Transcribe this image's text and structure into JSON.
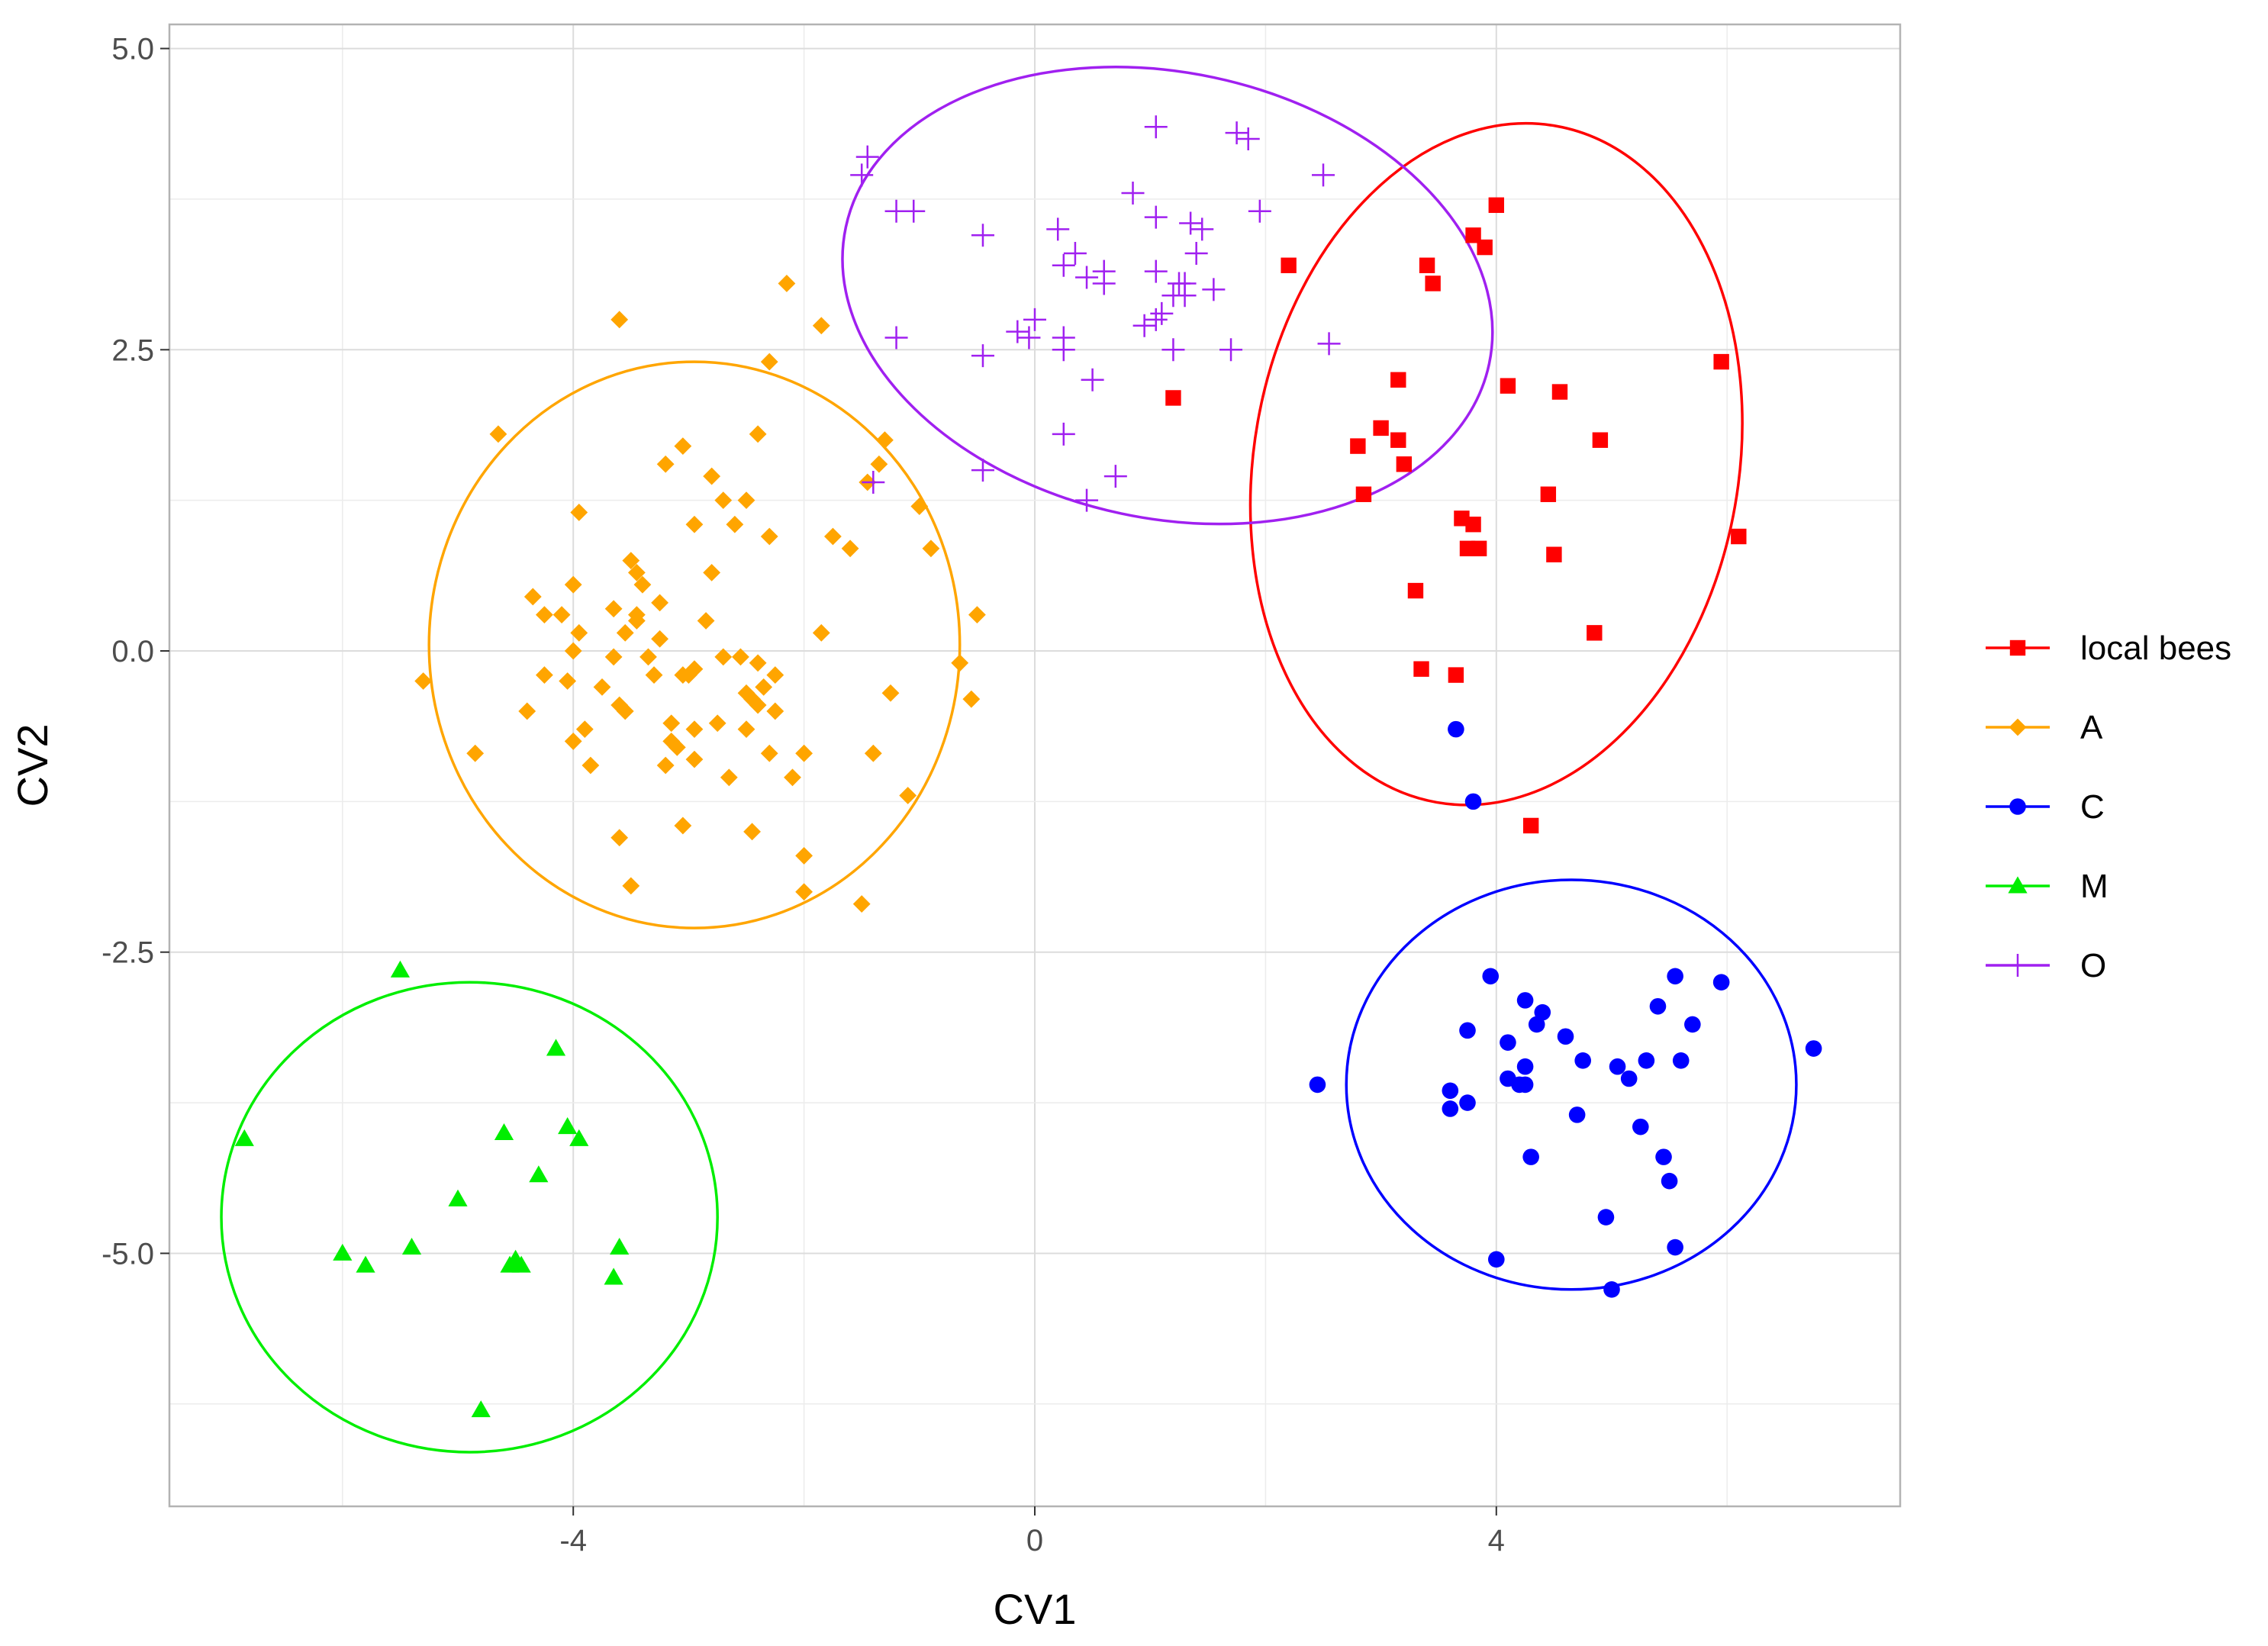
{
  "chart_data": {
    "type": "scatter",
    "title": "",
    "xlabel": "CV1",
    "ylabel": "CV2",
    "xlim": [
      -7.5,
      7.5
    ],
    "ylim": [
      -7.1,
      5.2
    ],
    "x_ticks": [
      -4,
      0,
      4
    ],
    "x_tick_labels": [
      "-4",
      "0",
      "4"
    ],
    "y_ticks": [
      -5.0,
      -2.5,
      0.0,
      2.5,
      5.0
    ],
    "y_tick_labels": [
      "-5.0",
      "-2.5",
      "0.0",
      "2.5",
      "5.0"
    ],
    "grid": true,
    "legend_position": "right",
    "series": [
      {
        "name": "local bees",
        "color": "#ff0000",
        "marker": "square",
        "ellipse": {
          "cx": 4.0,
          "cy": 1.55,
          "rx": 2.1,
          "ry": 2.85,
          "angle_deg": 10
        },
        "points": [
          [
            4.0,
            3.7
          ],
          [
            3.4,
            3.2
          ],
          [
            3.8,
            3.45
          ],
          [
            3.9,
            3.35
          ],
          [
            3.45,
            3.05
          ],
          [
            2.2,
            3.2
          ],
          [
            5.95,
            2.4
          ],
          [
            3.15,
            2.25
          ],
          [
            4.1,
            2.2
          ],
          [
            4.55,
            2.15
          ],
          [
            1.2,
            2.1
          ],
          [
            4.9,
            1.75
          ],
          [
            3.0,
            1.85
          ],
          [
            3.15,
            1.75
          ],
          [
            2.8,
            1.7
          ],
          [
            3.2,
            1.55
          ],
          [
            4.45,
            1.3
          ],
          [
            2.85,
            1.3
          ],
          [
            3.7,
            1.1
          ],
          [
            3.8,
            1.05
          ],
          [
            6.1,
            0.95
          ],
          [
            3.75,
            0.85
          ],
          [
            3.85,
            0.85
          ],
          [
            4.5,
            0.8
          ],
          [
            3.3,
            0.5
          ],
          [
            4.85,
            0.15
          ],
          [
            3.35,
            -0.15
          ],
          [
            3.65,
            -0.2
          ],
          [
            4.3,
            -1.45
          ]
        ]
      },
      {
        "name": "A",
        "color": "#ffa500",
        "marker": "diamond",
        "ellipse": {
          "cx": -2.95,
          "cy": 0.05,
          "rx": 2.3,
          "ry": 2.35,
          "angle_deg": 0
        },
        "points": [
          [
            -2.15,
            3.05
          ],
          [
            -3.6,
            2.75
          ],
          [
            -1.85,
            2.7
          ],
          [
            -2.3,
            2.4
          ],
          [
            -4.65,
            1.8
          ],
          [
            -2.4,
            1.8
          ],
          [
            -3.05,
            1.7
          ],
          [
            -1.3,
            1.75
          ],
          [
            -3.2,
            1.55
          ],
          [
            -1.35,
            1.55
          ],
          [
            -2.8,
            1.45
          ],
          [
            -1.45,
            1.4
          ],
          [
            -2.7,
            1.25
          ],
          [
            -2.5,
            1.25
          ],
          [
            -1.0,
            1.2
          ],
          [
            -3.95,
            1.15
          ],
          [
            -2.6,
            1.05
          ],
          [
            -2.95,
            1.05
          ],
          [
            -2.3,
            0.95
          ],
          [
            -1.75,
            0.95
          ],
          [
            -1.6,
            0.85
          ],
          [
            -0.9,
            0.85
          ],
          [
            -3.5,
            0.75
          ],
          [
            -3.45,
            0.65
          ],
          [
            -2.8,
            0.65
          ],
          [
            -4.0,
            0.55
          ],
          [
            -3.4,
            0.55
          ],
          [
            -4.35,
            0.45
          ],
          [
            -3.25,
            0.4
          ],
          [
            -3.65,
            0.35
          ],
          [
            -3.45,
            0.3
          ],
          [
            -4.25,
            0.3
          ],
          [
            -4.1,
            0.3
          ],
          [
            -3.45,
            0.25
          ],
          [
            -2.85,
            0.25
          ],
          [
            -0.5,
            0.3
          ],
          [
            -3.95,
            0.15
          ],
          [
            -1.85,
            0.15
          ],
          [
            -3.55,
            0.15
          ],
          [
            -3.25,
            0.1
          ],
          [
            -4.0,
            0.0
          ],
          [
            -3.65,
            -0.05
          ],
          [
            -2.7,
            -0.05
          ],
          [
            -3.35,
            -0.05
          ],
          [
            -2.55,
            -0.05
          ],
          [
            -2.4,
            -0.1
          ],
          [
            -0.65,
            -0.1
          ],
          [
            -2.95,
            -0.15
          ],
          [
            -3.05,
            -0.2
          ],
          [
            -3.3,
            -0.2
          ],
          [
            -4.25,
            -0.2
          ],
          [
            -3.0,
            -0.2
          ],
          [
            -2.25,
            -0.2
          ],
          [
            -5.3,
            -0.25
          ],
          [
            -4.05,
            -0.25
          ],
          [
            -3.75,
            -0.3
          ],
          [
            -2.35,
            -0.3
          ],
          [
            -2.5,
            -0.35
          ],
          [
            -1.25,
            -0.35
          ],
          [
            -3.6,
            -0.45
          ],
          [
            -2.45,
            -0.4
          ],
          [
            -0.55,
            -0.4
          ],
          [
            -2.4,
            -0.45
          ],
          [
            -2.25,
            -0.5
          ],
          [
            -3.55,
            -0.5
          ],
          [
            -4.4,
            -0.5
          ],
          [
            -3.15,
            -0.6
          ],
          [
            -2.75,
            -0.6
          ],
          [
            -3.9,
            -0.65
          ],
          [
            -2.95,
            -0.65
          ],
          [
            -2.5,
            -0.65
          ],
          [
            -4.0,
            -0.75
          ],
          [
            -3.15,
            -0.75
          ],
          [
            -3.1,
            -0.8
          ],
          [
            -2.3,
            -0.85
          ],
          [
            -2.0,
            -0.85
          ],
          [
            -1.4,
            -0.85
          ],
          [
            -4.85,
            -0.85
          ],
          [
            -2.95,
            -0.9
          ],
          [
            -3.2,
            -0.95
          ],
          [
            -3.85,
            -0.95
          ],
          [
            -2.65,
            -1.05
          ],
          [
            -2.1,
            -1.05
          ],
          [
            -1.1,
            -1.2
          ],
          [
            -3.05,
            -1.45
          ],
          [
            -2.45,
            -1.5
          ],
          [
            -3.6,
            -1.55
          ],
          [
            -2.0,
            -1.7
          ],
          [
            -3.5,
            -1.95
          ],
          [
            -2.0,
            -2.0
          ],
          [
            -1.5,
            -2.1
          ]
        ]
      },
      {
        "name": "C",
        "color": "#0000ff",
        "marker": "circle",
        "ellipse": {
          "cx": 4.65,
          "cy": -3.6,
          "rx": 1.95,
          "ry": 1.7,
          "angle_deg": 0
        },
        "points": [
          [
            3.65,
            -0.65
          ],
          [
            3.8,
            -1.25
          ],
          [
            3.95,
            -2.7
          ],
          [
            5.55,
            -2.7
          ],
          [
            5.95,
            -2.75
          ],
          [
            4.25,
            -2.9
          ],
          [
            4.4,
            -3.0
          ],
          [
            5.4,
            -2.95
          ],
          [
            5.7,
            -3.1
          ],
          [
            3.75,
            -3.15
          ],
          [
            4.35,
            -3.1
          ],
          [
            4.6,
            -3.2
          ],
          [
            4.1,
            -3.25
          ],
          [
            6.75,
            -3.3
          ],
          [
            4.25,
            -3.45
          ],
          [
            4.75,
            -3.4
          ],
          [
            5.05,
            -3.45
          ],
          [
            5.3,
            -3.4
          ],
          [
            5.6,
            -3.4
          ],
          [
            4.1,
            -3.55
          ],
          [
            5.15,
            -3.55
          ],
          [
            4.2,
            -3.6
          ],
          [
            4.25,
            -3.6
          ],
          [
            2.45,
            -3.6
          ],
          [
            3.6,
            -3.65
          ],
          [
            3.75,
            -3.75
          ],
          [
            3.6,
            -3.8
          ],
          [
            4.7,
            -3.85
          ],
          [
            5.25,
            -3.95
          ],
          [
            4.3,
            -4.2
          ],
          [
            5.45,
            -4.2
          ],
          [
            5.5,
            -4.4
          ],
          [
            4.95,
            -4.7
          ],
          [
            5.55,
            -4.95
          ],
          [
            4.0,
            -5.05
          ],
          [
            5.0,
            -5.3
          ]
        ]
      },
      {
        "name": "M",
        "color": "#00ee00",
        "marker": "triangle",
        "ellipse": {
          "cx": -4.9,
          "cy": -4.7,
          "rx": 2.15,
          "ry": 1.95,
          "angle_deg": 0
        },
        "points": [
          [
            -5.5,
            -2.65
          ],
          [
            -4.15,
            -3.3
          ],
          [
            -6.85,
            -4.05
          ],
          [
            -4.6,
            -4.0
          ],
          [
            -4.05,
            -3.95
          ],
          [
            -3.95,
            -4.05
          ],
          [
            -4.3,
            -4.35
          ],
          [
            -5.0,
            -4.55
          ],
          [
            -6.0,
            -5.0
          ],
          [
            -5.4,
            -4.95
          ],
          [
            -3.6,
            -4.95
          ],
          [
            -5.8,
            -5.1
          ],
          [
            -4.5,
            -5.05
          ],
          [
            -4.55,
            -5.1
          ],
          [
            -4.45,
            -5.1
          ],
          [
            -3.65,
            -5.2
          ],
          [
            -4.8,
            -6.3
          ]
        ]
      },
      {
        "name": "O",
        "color": "#a020f0",
        "marker": "plus",
        "ellipse": {
          "cx": 1.15,
          "cy": 2.95,
          "rx": 2.85,
          "ry": 1.85,
          "angle_deg": 12
        },
        "points": [
          [
            1.05,
            4.35
          ],
          [
            1.75,
            4.3
          ],
          [
            1.85,
            4.25
          ],
          [
            -1.45,
            4.1
          ],
          [
            -1.5,
            3.95
          ],
          [
            2.5,
            3.95
          ],
          [
            0.85,
            3.8
          ],
          [
            -1.2,
            3.65
          ],
          [
            -1.05,
            3.65
          ],
          [
            1.95,
            3.65
          ],
          [
            1.05,
            3.6
          ],
          [
            1.35,
            3.55
          ],
          [
            -0.45,
            3.45
          ],
          [
            0.2,
            3.5
          ],
          [
            1.45,
            3.5
          ],
          [
            0.35,
            3.3
          ],
          [
            1.4,
            3.3
          ],
          [
            0.25,
            3.2
          ],
          [
            0.6,
            3.15
          ],
          [
            1.05,
            3.15
          ],
          [
            0.45,
            3.1
          ],
          [
            0.6,
            3.05
          ],
          [
            1.25,
            3.05
          ],
          [
            1.3,
            3.05
          ],
          [
            1.55,
            3.0
          ],
          [
            1.3,
            2.95
          ],
          [
            1.2,
            2.95
          ],
          [
            0.0,
            2.75
          ],
          [
            1.1,
            2.8
          ],
          [
            1.05,
            2.75
          ],
          [
            0.95,
            2.7
          ],
          [
            -1.2,
            2.6
          ],
          [
            -0.15,
            2.65
          ],
          [
            -0.05,
            2.6
          ],
          [
            0.25,
            2.6
          ],
          [
            2.55,
            2.55
          ],
          [
            1.7,
            2.5
          ],
          [
            0.25,
            2.5
          ],
          [
            1.2,
            2.5
          ],
          [
            -0.45,
            2.45
          ],
          [
            0.5,
            2.25
          ],
          [
            0.25,
            1.8
          ],
          [
            -0.45,
            1.5
          ],
          [
            0.7,
            1.45
          ],
          [
            -1.4,
            1.4
          ],
          [
            0.45,
            1.25
          ]
        ]
      }
    ]
  }
}
